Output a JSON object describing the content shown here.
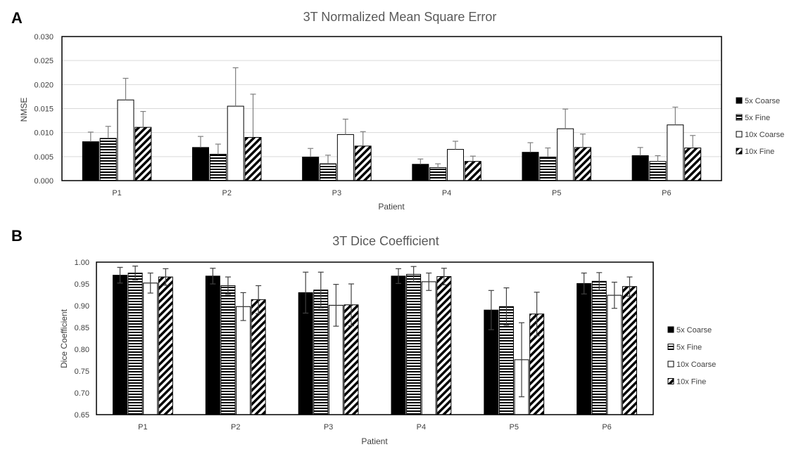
{
  "panels": {
    "a": {
      "letter": "A"
    },
    "b": {
      "letter": "B"
    }
  },
  "chart_data": [
    {
      "type": "bar",
      "title": "3T Normalized Mean Square Error",
      "xlabel": "Patient",
      "ylabel": "NMSE",
      "ylim": [
        0,
        0.03
      ],
      "yticks": [
        "0.000",
        "0.005",
        "0.010",
        "0.015",
        "0.020",
        "0.025",
        "0.030"
      ],
      "ytick_values": [
        0,
        0.005,
        0.01,
        0.015,
        0.02,
        0.025,
        0.03
      ],
      "grid": true,
      "legend_position": "right",
      "categories": [
        "P1",
        "P2",
        "P3",
        "P4",
        "P5",
        "P6"
      ],
      "series": [
        {
          "name": "5x Coarse",
          "fill": "solid",
          "values": [
            0.0081,
            0.0069,
            0.0049,
            0.0034,
            0.0059,
            0.0052
          ],
          "errors": [
            0.002,
            0.0023,
            0.0018,
            0.0011,
            0.002,
            0.0017
          ]
        },
        {
          "name": "5x Fine",
          "fill": "horizontal-stripes",
          "values": [
            0.0088,
            0.0055,
            0.0035,
            0.0027,
            0.0049,
            0.004
          ],
          "errors": [
            0.0025,
            0.0021,
            0.0018,
            0.0008,
            0.0019,
            0.0012
          ]
        },
        {
          "name": "10x Coarse",
          "fill": "empty",
          "values": [
            0.0168,
            0.0155,
            0.0096,
            0.0065,
            0.0108,
            0.0116
          ],
          "errors": [
            0.0045,
            0.008,
            0.0032,
            0.0017,
            0.0041,
            0.0037
          ]
        },
        {
          "name": "10x Fine",
          "fill": "diagonal-stripes",
          "values": [
            0.0111,
            0.009,
            0.0072,
            0.004,
            0.0069,
            0.0068
          ],
          "errors": [
            0.0033,
            0.009,
            0.003,
            0.0011,
            0.0028,
            0.0026
          ]
        }
      ]
    },
    {
      "type": "bar",
      "title": "3T Dice Coefficient",
      "xlabel": "Patient",
      "ylabel": "Dice Coefficient",
      "ylim": [
        0.65,
        1.0
      ],
      "yticks": [
        "0.65",
        "0.70",
        "0.75",
        "0.80",
        "0.85",
        "0.90",
        "0.95",
        "1.00"
      ],
      "ytick_values": [
        0.65,
        0.7,
        0.75,
        0.8,
        0.85,
        0.9,
        0.95,
        1.0
      ],
      "grid": false,
      "legend_position": "right",
      "categories": [
        "P1",
        "P2",
        "P3",
        "P4",
        "P5",
        "P6"
      ],
      "series": [
        {
          "name": "5x Coarse",
          "fill": "solid",
          "values": [
            0.97,
            0.968,
            0.93,
            0.968,
            0.89,
            0.951
          ],
          "errors": [
            0.018,
            0.018,
            0.047,
            0.017,
            0.045,
            0.024
          ]
        },
        {
          "name": "5x Fine",
          "fill": "horizontal-stripes",
          "values": [
            0.975,
            0.946,
            0.936,
            0.972,
            0.898,
            0.956
          ],
          "errors": [
            0.016,
            0.02,
            0.041,
            0.018,
            0.043,
            0.02
          ]
        },
        {
          "name": "10x Coarse",
          "fill": "empty",
          "values": [
            0.952,
            0.898,
            0.901,
            0.955,
            0.776,
            0.924
          ],
          "errors": [
            0.023,
            0.032,
            0.048,
            0.02,
            0.085,
            0.03
          ]
        },
        {
          "name": "10x Fine",
          "fill": "diagonal-stripes",
          "values": [
            0.966,
            0.914,
            0.902,
            0.967,
            0.881,
            0.944
          ],
          "errors": [
            0.019,
            0.032,
            0.048,
            0.019,
            0.05,
            0.022
          ]
        }
      ]
    }
  ]
}
